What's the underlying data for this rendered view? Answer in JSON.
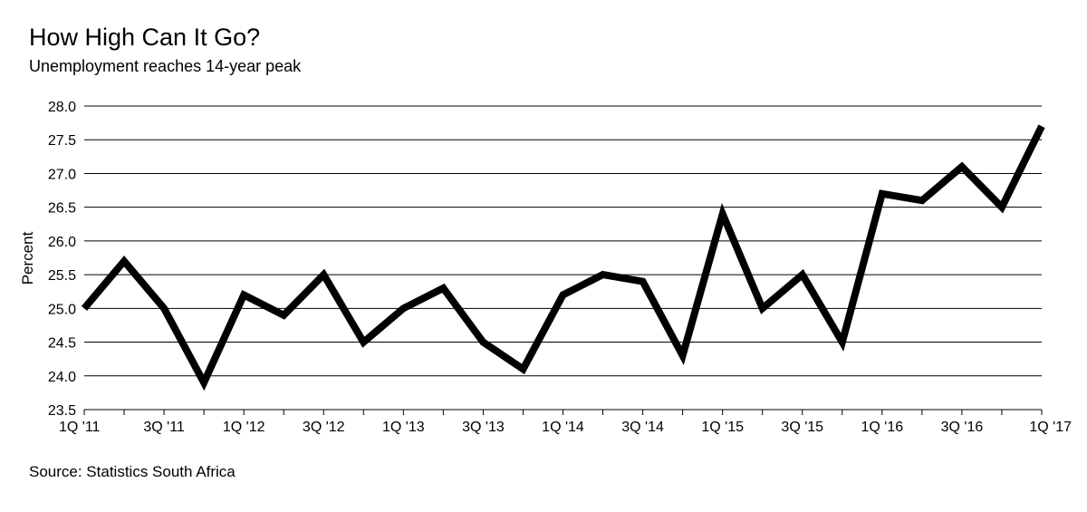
{
  "header": {
    "title": "How High Can It Go?",
    "subtitle": "Unemployment reaches 14-year peak"
  },
  "footer": {
    "source": "Source: Statistics South Africa"
  },
  "colors": {
    "line": "#000000",
    "grid": "#000000",
    "background": "#ffffff"
  },
  "chart_data": {
    "type": "line",
    "title": "How High Can It Go?",
    "subtitle": "Unemployment reaches 14-year peak",
    "xlabel": "",
    "ylabel": "Percent",
    "ylim": [
      23.5,
      28.0
    ],
    "yticks": [
      23.5,
      24.0,
      24.5,
      25.0,
      25.5,
      26.0,
      26.5,
      27.0,
      27.5,
      28.0
    ],
    "grid": true,
    "x": [
      "1Q '11",
      "2Q '11",
      "3Q '11",
      "4Q '11",
      "1Q '12",
      "2Q '12",
      "3Q '12",
      "4Q '12",
      "1Q '13",
      "2Q '13",
      "3Q '13",
      "4Q '13",
      "1Q '14",
      "2Q '14",
      "3Q '14",
      "4Q '14",
      "1Q '15",
      "2Q '15",
      "3Q '15",
      "4Q '15",
      "1Q '16",
      "2Q '16",
      "3Q '16",
      "4Q '16",
      "1Q '17"
    ],
    "xtick_labels": [
      "1Q '11",
      "3Q '11",
      "1Q '12",
      "3Q '12",
      "1Q '13",
      "3Q '13",
      "1Q '14",
      "3Q '14",
      "1Q '15",
      "3Q '15",
      "1Q '16",
      "3Q '16",
      "1Q '17"
    ],
    "series": [
      {
        "values": [
          25.0,
          25.7,
          25.0,
          23.9,
          25.2,
          24.9,
          25.5,
          24.5,
          25.0,
          25.3,
          24.5,
          24.1,
          25.2,
          25.5,
          25.4,
          24.3,
          26.4,
          25.0,
          25.5,
          24.5,
          26.7,
          26.6,
          27.1,
          26.5,
          27.7
        ]
      }
    ]
  }
}
